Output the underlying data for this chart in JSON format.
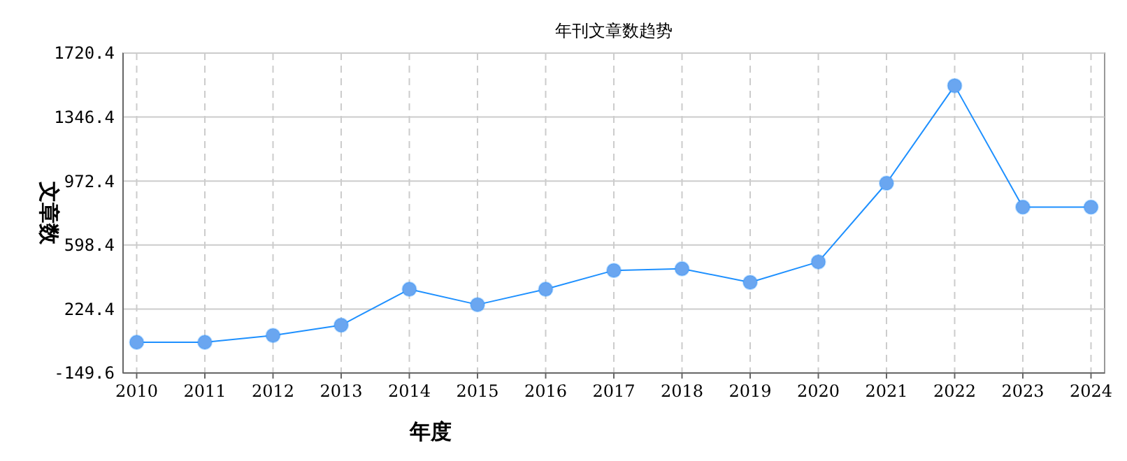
{
  "chart_data": {
    "type": "line",
    "title": "年刊文章数趋势",
    "xlabel": "年度",
    "ylabel": "文章数",
    "categories": [
      "2010",
      "2011",
      "2012",
      "2013",
      "2014",
      "2015",
      "2016",
      "2017",
      "2018",
      "2019",
      "2020",
      "2021",
      "2022",
      "2023",
      "2024"
    ],
    "series": [
      {
        "color": "#1e90ff",
        "values": [
          30,
          30,
          70,
          130,
          340,
          250,
          340,
          450,
          460,
          380,
          500,
          960,
          1530,
          820,
          820
        ]
      }
    ],
    "ylim": [
      -149.6,
      1720.4
    ],
    "yticks": [
      -149.6,
      224.4,
      598.4,
      972.4,
      1346.4,
      1720.4
    ],
    "grid": true,
    "marker": "circle",
    "line_style": "solid"
  }
}
